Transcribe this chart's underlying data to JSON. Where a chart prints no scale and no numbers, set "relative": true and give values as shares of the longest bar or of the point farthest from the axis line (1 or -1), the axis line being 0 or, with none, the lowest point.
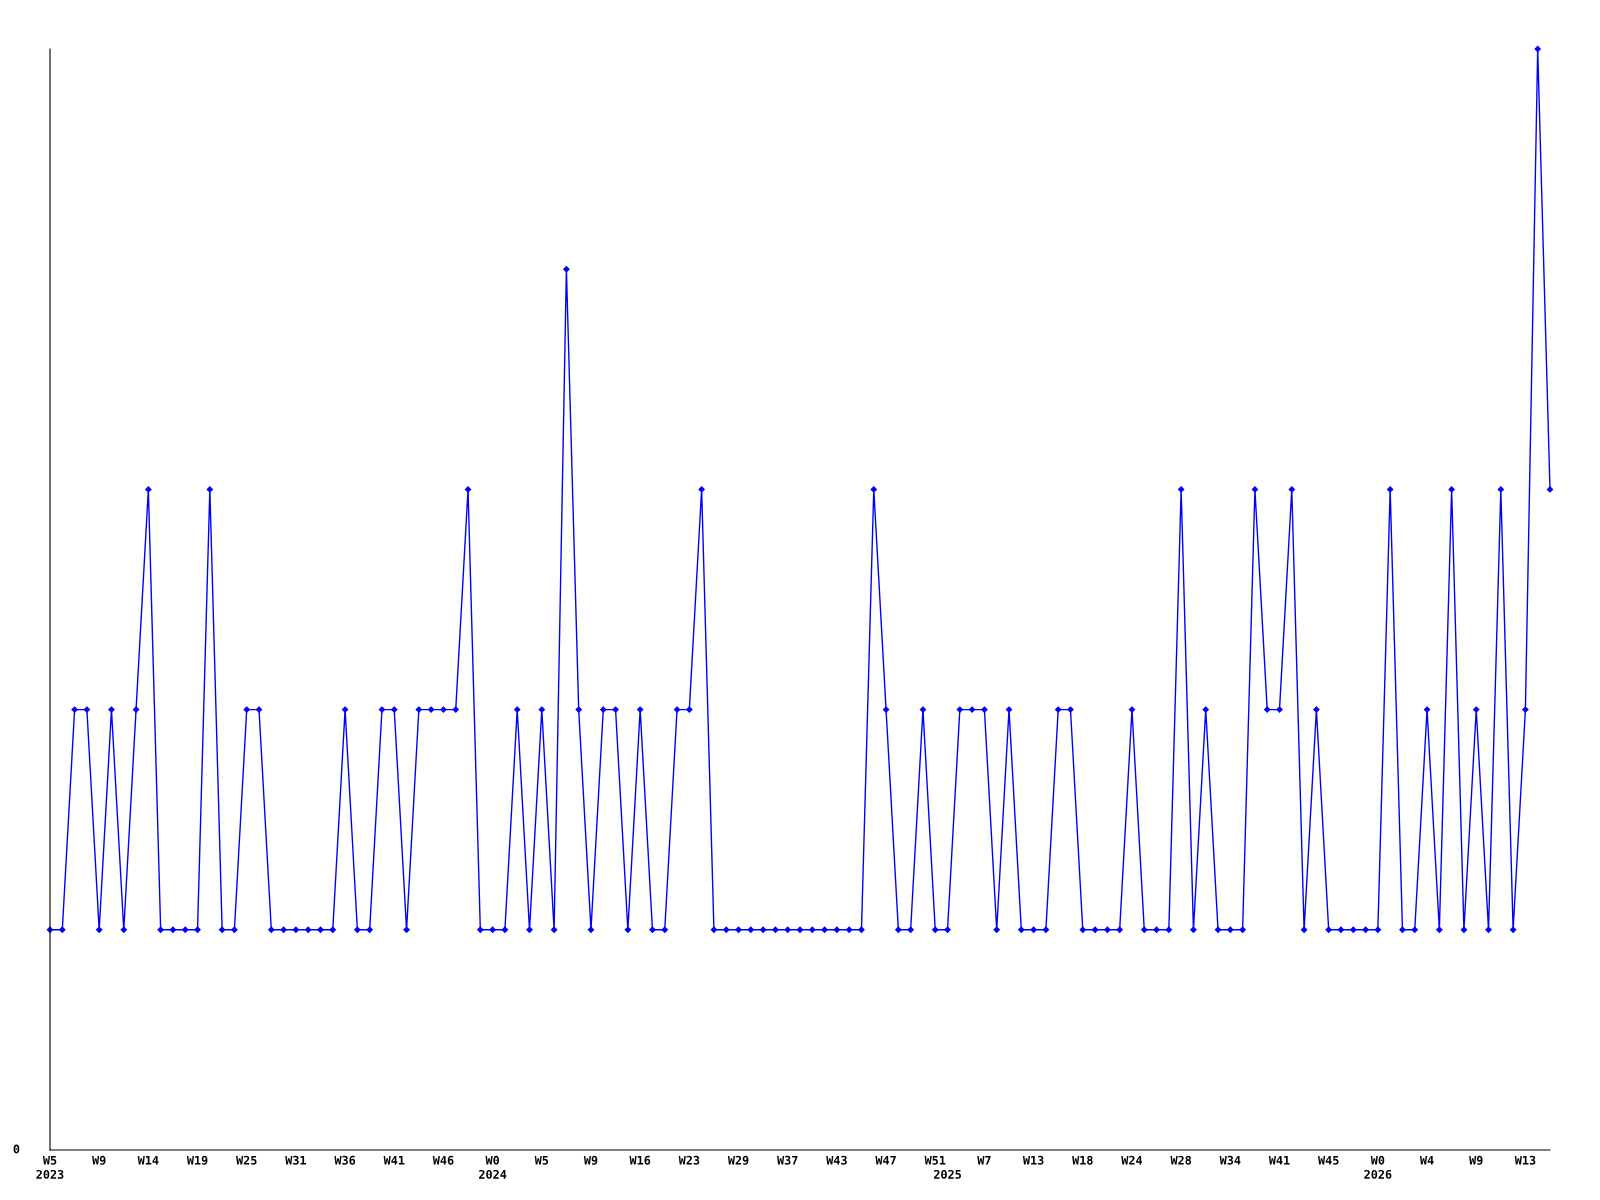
{
  "chart_data": {
    "type": "line",
    "relative": true,
    "marker": "diamond",
    "line_style": "solid",
    "grid": false,
    "annotations": [
      "0"
    ],
    "categories": [
      "W5\n2023",
      null,
      null,
      null,
      "W9",
      null,
      null,
      null,
      "W14",
      null,
      null,
      null,
      "W19",
      null,
      null,
      null,
      "W25",
      null,
      null,
      null,
      "W31",
      null,
      null,
      null,
      "W36",
      null,
      null,
      null,
      "W41",
      null,
      null,
      null,
      "W46",
      null,
      null,
      null,
      "W0\n2024",
      null,
      null,
      null,
      "W5",
      null,
      null,
      null,
      "W9",
      null,
      null,
      null,
      "W16",
      null,
      null,
      null,
      "W23",
      null,
      null,
      null,
      "W29",
      null,
      null,
      null,
      "W37",
      null,
      null,
      null,
      "W43",
      null,
      null,
      null,
      "W47",
      null,
      null,
      null,
      "W51",
      "\n2025",
      null,
      null,
      "W7",
      null,
      null,
      null,
      "W13",
      null,
      null,
      null,
      "W18",
      null,
      null,
      null,
      "W24",
      null,
      null,
      null,
      "W28",
      null,
      null,
      null,
      "W34",
      null,
      null,
      null,
      "W41",
      null,
      null,
      null,
      "W45",
      null,
      null,
      null,
      "W0\n2026",
      null,
      null,
      null,
      "W4",
      null,
      null,
      null,
      "W9",
      null,
      null,
      null,
      "W13",
      null,
      null
    ],
    "series": [
      {
        "color": "#0000ff",
        "values": [
          0.2,
          0.2,
          0.4,
          0.4,
          0.2,
          0.4,
          0.2,
          0.4,
          0.6,
          0.2,
          0.2,
          0.2,
          0.2,
          0.6,
          0.2,
          0.2,
          0.4,
          0.4,
          0.2,
          0.2,
          0.2,
          0.2,
          0.2,
          0.2,
          0.4,
          0.2,
          0.2,
          0.4,
          0.4,
          0.2,
          0.4,
          0.4,
          0.4,
          0.4,
          0.6,
          0.2,
          0.2,
          0.2,
          0.4,
          0.2,
          0.4,
          0.2,
          0.8,
          0.4,
          0.2,
          0.4,
          0.4,
          0.2,
          0.4,
          0.2,
          0.2,
          0.4,
          0.4,
          0.6,
          0.2,
          0.2,
          0.2,
          0.2,
          0.2,
          0.2,
          0.2,
          0.2,
          0.2,
          0.2,
          0.2,
          0.2,
          0.2,
          0.6,
          0.4,
          0.2,
          0.2,
          0.4,
          0.2,
          0.2,
          0.4,
          0.4,
          0.4,
          0.2,
          0.4,
          0.2,
          0.2,
          0.2,
          0.4,
          0.4,
          0.2,
          0.2,
          0.2,
          0.2,
          0.4,
          0.2,
          0.2,
          0.2,
          0.6,
          0.2,
          0.4,
          0.2,
          0.2,
          0.2,
          0.6,
          0.4,
          0.4,
          0.6,
          0.2,
          0.4,
          0.2,
          0.2,
          0.2,
          0.2,
          0.2,
          0.6,
          0.2,
          0.2,
          0.4,
          0.2,
          0.6,
          0.2,
          0.4,
          0.2,
          0.6,
          0.2,
          0.4,
          1,
          0.6
        ]
      }
    ]
  }
}
